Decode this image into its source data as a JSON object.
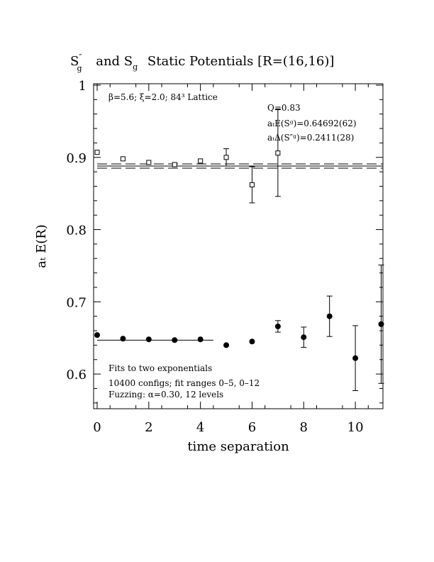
{
  "title": {
    "main_1": "S",
    "main_1_sup": "″",
    "main_1_sub": "g",
    "main_2": "and S",
    "main_2_sub": "g",
    "main_3": "Static Potentials [R=(16,16)]"
  },
  "legend_text": {
    "top_left": "β=5.6; ξ=2.0; 84³ Lattice",
    "q": "Q=0.83",
    "energy": "aₜE(Sᵍ)=0.64692(62)",
    "delta": "aₜΔ(S″ᵍ)=0.2411(28)",
    "fit_1": "Fits to two exponentials",
    "fit_2": "10400 configs; fit ranges 0–5, 0–12",
    "fit_3": "Fuzzing: α=0.30, 12 levels"
  },
  "chart_data": {
    "type": "scatter",
    "xlabel": "time separation",
    "ylabel": "aₜ E(R)",
    "xlim": [
      0,
      11
    ],
    "ylim": [
      0.55,
      1.0
    ],
    "x_ticks": [
      0,
      2,
      4,
      6,
      8,
      10
    ],
    "y_ticks": [
      0.6,
      0.7,
      0.8,
      0.9,
      1.0
    ],
    "x_tick_labels": [
      "0",
      "2",
      "4",
      "6",
      "8",
      "10"
    ],
    "y_tick_labels": [
      "0.6",
      "0.7",
      "0.8",
      "0.9",
      "1"
    ],
    "series": [
      {
        "marker": "square-open",
        "points": [
          {
            "x": 0,
            "y": 0.907,
            "err": 0.0
          },
          {
            "x": 1,
            "y": 0.898,
            "err": 0.0
          },
          {
            "x": 2,
            "y": 0.893,
            "err": 0.0
          },
          {
            "x": 3,
            "y": 0.89,
            "err": 0.0
          },
          {
            "x": 4,
            "y": 0.895,
            "err": 0.0
          },
          {
            "x": 5,
            "y": 0.9,
            "err": 0.012
          },
          {
            "x": 6,
            "y": 0.862,
            "err": 0.025
          },
          {
            "x": 7,
            "y": 0.906,
            "err": 0.06
          }
        ]
      },
      {
        "marker": "circle-filled",
        "points": [
          {
            "x": 0,
            "y": 0.654,
            "err": 0.0
          },
          {
            "x": 1,
            "y": 0.649,
            "err": 0.0
          },
          {
            "x": 2,
            "y": 0.648,
            "err": 0.0
          },
          {
            "x": 3,
            "y": 0.647,
            "err": 0.0
          },
          {
            "x": 4,
            "y": 0.648,
            "err": 0.0
          },
          {
            "x": 5,
            "y": 0.64,
            "err": 0.0
          },
          {
            "x": 6,
            "y": 0.645,
            "err": 0.0
          },
          {
            "x": 7,
            "y": 0.666,
            "err": 0.008
          },
          {
            "x": 8,
            "y": 0.651,
            "err": 0.014
          },
          {
            "x": 9,
            "y": 0.68,
            "err": 0.028
          },
          {
            "x": 10,
            "y": 0.622,
            "err": 0.045
          },
          {
            "x": 11,
            "y": 0.669,
            "err": 0.082
          }
        ]
      }
    ],
    "fit_lines": [
      {
        "y": 0.6469,
        "x_from": 0,
        "x_to": 4.5,
        "style": "solid"
      },
      {
        "y": 0.888,
        "x_from": 0,
        "x_to": 11,
        "style": "solid"
      },
      {
        "y": 0.891,
        "x_from": 0,
        "x_to": 11,
        "style": "dashed"
      },
      {
        "y": 0.885,
        "x_from": 0,
        "x_to": 11,
        "style": "dashed"
      }
    ]
  }
}
